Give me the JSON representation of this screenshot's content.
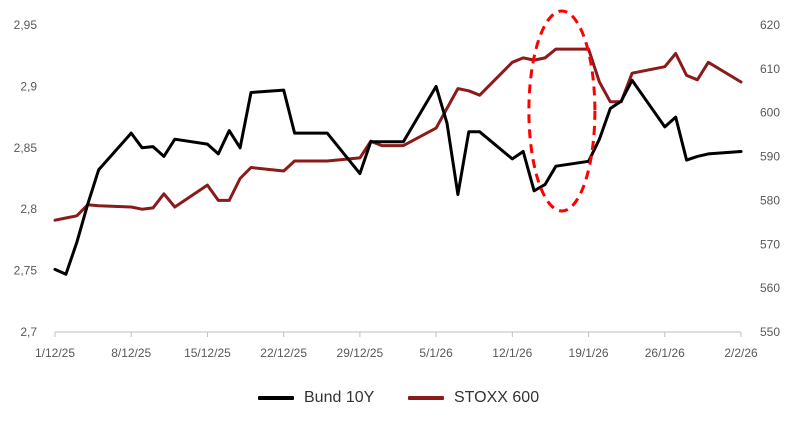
{
  "chart_data": {
    "type": "line",
    "x_dates": [
      "1/12/25",
      "2/12/25",
      "3/12/25",
      "4/12/25",
      "5/12/25",
      "8/12/25",
      "9/12/25",
      "10/12/25",
      "11/12/25",
      "12/12/25",
      "15/12/25",
      "16/12/25",
      "17/12/25",
      "18/12/25",
      "19/12/25",
      "22/12/25",
      "23/12/25",
      "24/12/25",
      "26/12/25",
      "29/12/25",
      "30/12/25",
      "31/12/25",
      "2/1/26",
      "5/1/26",
      "6/1/26",
      "7/1/26",
      "8/1/26",
      "9/1/26",
      "12/1/26",
      "13/1/26",
      "14/1/26",
      "15/1/26",
      "16/1/26",
      "19/1/26",
      "20/1/26",
      "21/1/26",
      "22/1/26",
      "23/1/26",
      "26/1/26",
      "27/1/26",
      "28/1/26",
      "29/1/26",
      "30/1/26",
      "2/2/26"
    ],
    "x_ticks": [
      "1/12/25",
      "8/12/25",
      "15/12/25",
      "22/12/25",
      "29/12/25",
      "5/1/26",
      "12/1/26",
      "19/1/26",
      "26/1/26",
      "2/2/26"
    ],
    "y_left": {
      "ticks": [
        "2,7",
        "2,75",
        "2,8",
        "2,85",
        "2,9",
        "2,95"
      ],
      "ylim": [
        2.7,
        2.95
      ]
    },
    "y_right": {
      "ticks": [
        "550",
        "560",
        "570",
        "580",
        "590",
        "600",
        "610",
        "620"
      ],
      "ylim": [
        550,
        620
      ]
    },
    "series": [
      {
        "name": "Bund 10Y",
        "axis": "left",
        "color": "#000000",
        "values": [
          2.751,
          2.747,
          2.773,
          2.804,
          2.832,
          2.862,
          2.85,
          2.851,
          2.843,
          2.857,
          2.853,
          2.845,
          2.864,
          2.85,
          2.895,
          2.897,
          2.862,
          2.862,
          2.862,
          2.829,
          2.855,
          2.855,
          2.855,
          2.9,
          2.87,
          2.812,
          2.863,
          2.863,
          2.841,
          2.847,
          2.815,
          2.82,
          2.835,
          2.839,
          2.857,
          2.882,
          2.888,
          2.905,
          2.867,
          2.875,
          2.84,
          2.843,
          2.845,
          2.847
        ]
      },
      {
        "name": "STOXX 600",
        "axis": "right",
        "color": "#8B1A1A",
        "values": [
          575.5,
          576.0,
          576.5,
          579.0,
          578.8,
          578.5,
          578.0,
          578.3,
          581.5,
          578.5,
          583.5,
          580.0,
          580.0,
          585.0,
          587.5,
          586.7,
          589.0,
          589.0,
          589.0,
          589.7,
          593.5,
          592.5,
          592.5,
          596.5,
          601.0,
          605.5,
          605.0,
          604.0,
          611.5,
          612.5,
          612.0,
          612.5,
          614.5,
          614.5,
          607.0,
          602.5,
          602.5,
          609.0,
          610.5,
          613.5,
          608.5,
          607.5,
          611.5,
          607.0
        ]
      }
    ],
    "legend_placement": "bottom",
    "grid": false,
    "annotation": {
      "shape": "dashed-ellipse",
      "color": "#FF0000",
      "date": "16/1/26"
    }
  }
}
